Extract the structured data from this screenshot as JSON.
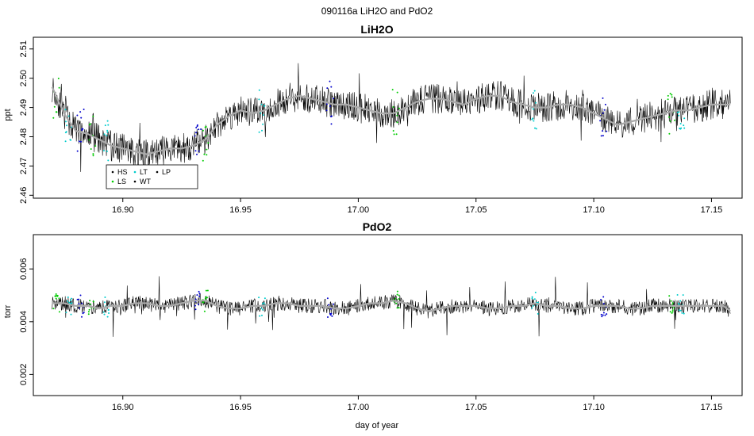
{
  "figure": {
    "title": "090116a   LiH2O and PdO2",
    "xlabel": "day of year"
  },
  "legend": {
    "entries": [
      {
        "label": "HS",
        "color": "#000000"
      },
      {
        "label": "LT",
        "color": "#00cccc"
      },
      {
        "label": "LP",
        "color": "#000000"
      },
      {
        "label": "LS",
        "color": "#00cc00"
      },
      {
        "label": "WT",
        "color": "#000000"
      }
    ]
  },
  "colors": {
    "raw": "#000000",
    "smooth": "#aaaaaa",
    "LS": "#00cc00",
    "LT": "#00cccc",
    "HS": "#0000cc"
  },
  "chart_data": [
    {
      "type": "line",
      "title": "LiH2O",
      "xlabel": "",
      "ylabel": "ppt",
      "xlim": [
        16.862,
        17.163
      ],
      "ylim": [
        2.459,
        2.514
      ],
      "xticks": [
        "16.90",
        "16.95",
        "17.00",
        "17.05",
        "17.10",
        "17.15"
      ],
      "xtick_values": [
        16.9,
        16.95,
        17.0,
        17.05,
        17.1,
        17.15
      ],
      "yticks": [
        "2.46",
        "2.47",
        "2.48",
        "2.49",
        "2.50",
        "2.51"
      ],
      "ytick_values": [
        2.46,
        2.47,
        2.48,
        2.49,
        2.5,
        2.51
      ],
      "grid": false,
      "legend_placement": "bottom-left",
      "series": [
        {
          "name": "",
          "x": [
            16.87,
            16.875,
            16.88,
            16.885,
            16.89,
            16.895,
            16.9,
            16.905,
            16.91,
            16.915,
            16.92,
            16.925,
            16.93,
            16.935,
            16.94,
            16.945,
            16.95,
            16.955,
            16.96,
            16.965,
            16.97,
            16.975,
            16.98,
            16.985,
            16.99,
            16.995,
            17.0,
            17.005,
            17.01,
            17.015,
            17.02,
            17.025,
            17.03,
            17.035,
            17.04,
            17.045,
            17.05,
            17.055,
            17.06,
            17.065,
            17.07,
            17.075,
            17.08,
            17.085,
            17.09,
            17.095,
            17.1,
            17.105,
            17.11,
            17.115,
            17.12,
            17.125,
            17.13,
            17.135,
            17.14,
            17.145,
            17.15,
            17.155,
            17.158
          ],
          "values": [
            2.497,
            2.488,
            2.482,
            2.481,
            2.479,
            2.477,
            2.476,
            2.475,
            2.474,
            2.475,
            2.476,
            2.476,
            2.477,
            2.479,
            2.484,
            2.487,
            2.489,
            2.488,
            2.489,
            2.491,
            2.493,
            2.494,
            2.493,
            2.492,
            2.491,
            2.491,
            2.49,
            2.489,
            2.488,
            2.488,
            2.49,
            2.492,
            2.493,
            2.493,
            2.492,
            2.491,
            2.493,
            2.494,
            2.494,
            2.492,
            2.491,
            2.49,
            2.49,
            2.491,
            2.491,
            2.49,
            2.488,
            2.486,
            2.484,
            2.485,
            2.486,
            2.487,
            2.488,
            2.489,
            2.489,
            2.49,
            2.491,
            2.491,
            2.491
          ]
        }
      ]
    },
    {
      "type": "line",
      "title": "PdO2",
      "xlabel": "day of year",
      "ylabel": "torr",
      "xlim": [
        16.862,
        17.163
      ],
      "ylim": [
        0.0012,
        0.0073
      ],
      "xticks": [
        "16.90",
        "16.95",
        "17.00",
        "17.05",
        "17.10",
        "17.15"
      ],
      "xtick_values": [
        16.9,
        16.95,
        17.0,
        17.05,
        17.1,
        17.15
      ],
      "yticks": [
        "0.002",
        "0.004",
        "0.006"
      ],
      "ytick_values": [
        0.002,
        0.004,
        0.006
      ],
      "grid": false,
      "series": [
        {
          "name": "",
          "x": [
            16.87,
            16.875,
            16.88,
            16.885,
            16.89,
            16.895,
            16.9,
            16.905,
            16.91,
            16.915,
            16.92,
            16.925,
            16.93,
            16.935,
            16.94,
            16.945,
            16.95,
            16.955,
            16.96,
            16.965,
            16.97,
            16.975,
            16.98,
            16.985,
            16.99,
            16.995,
            17.0,
            17.005,
            17.01,
            17.015,
            17.02,
            17.025,
            17.03,
            17.035,
            17.04,
            17.045,
            17.05,
            17.055,
            17.06,
            17.065,
            17.07,
            17.075,
            17.08,
            17.085,
            17.09,
            17.095,
            17.1,
            17.105,
            17.11,
            17.115,
            17.12,
            17.125,
            17.13,
            17.135,
            17.14,
            17.145,
            17.15,
            17.155,
            17.158
          ],
          "values": [
            0.0047,
            0.0047,
            0.0046,
            0.0046,
            0.0045,
            0.0046,
            0.0046,
            0.0047,
            0.0047,
            0.0046,
            0.0046,
            0.0047,
            0.0048,
            0.0048,
            0.0046,
            0.0045,
            0.0045,
            0.0046,
            0.0046,
            0.0047,
            0.0047,
            0.0046,
            0.0046,
            0.0046,
            0.0045,
            0.0045,
            0.0046,
            0.0047,
            0.0047,
            0.0048,
            0.0047,
            0.0045,
            0.0044,
            0.0045,
            0.0046,
            0.0046,
            0.0046,
            0.0045,
            0.0045,
            0.0046,
            0.0046,
            0.0047,
            0.0046,
            0.0046,
            0.0045,
            0.0045,
            0.0046,
            0.0046,
            0.0046,
            0.0045,
            0.0045,
            0.0046,
            0.0046,
            0.0046,
            0.0046,
            0.0046,
            0.0046,
            0.0046,
            0.0044
          ]
        }
      ]
    }
  ]
}
